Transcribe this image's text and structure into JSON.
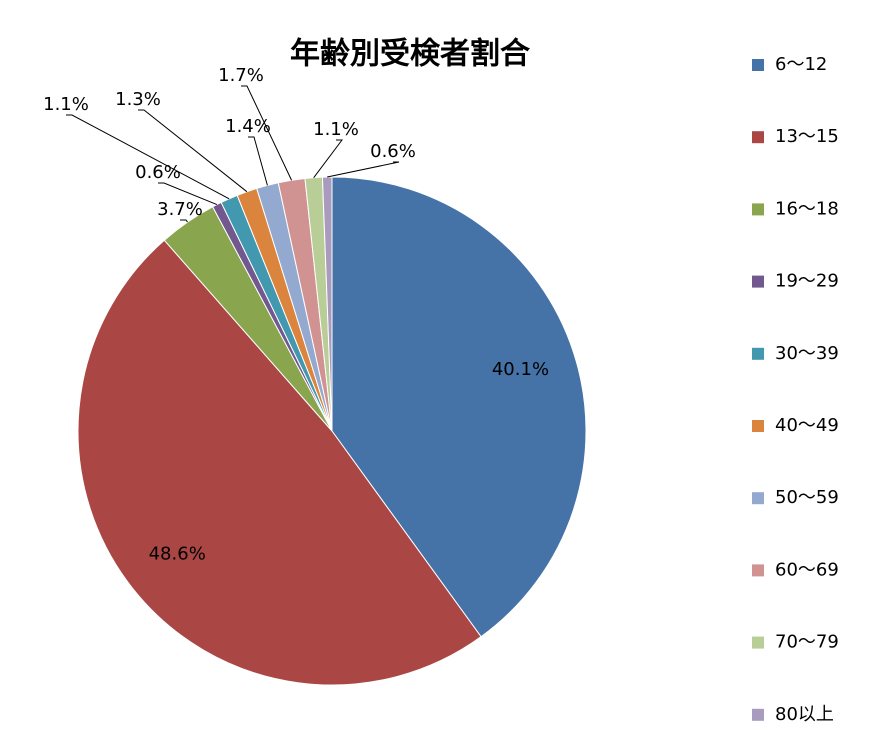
{
  "chart_data": {
    "type": "pie",
    "title": "年齢別受検者割合",
    "categories": [
      "6〜12",
      "13〜15",
      "16〜18",
      "19〜29",
      "30〜39",
      "40〜49",
      "50〜59",
      "60〜69",
      "70〜79",
      "80以上"
    ],
    "values": [
      40.1,
      48.6,
      3.7,
      0.6,
      1.1,
      1.3,
      1.4,
      1.7,
      1.1,
      0.6
    ],
    "value_labels": [
      "40.1%",
      "48.6%",
      "3.7%",
      "0.6%",
      "1.1%",
      "1.3%",
      "1.4%",
      "1.7%",
      "1.1%",
      "0.6%"
    ],
    "colors": [
      "#4572a7",
      "#aa4643",
      "#89a54e",
      "#71588f",
      "#4198af",
      "#db843d",
      "#93a9cf",
      "#d19392",
      "#b9cd96",
      "#a99bbd"
    ],
    "legend": "right"
  }
}
